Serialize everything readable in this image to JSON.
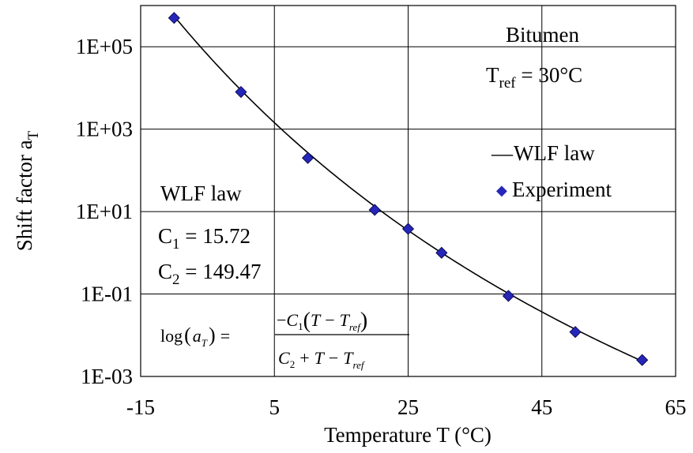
{
  "chart_data": {
    "type": "scatter",
    "title": "",
    "xlabel": "Temperature T (°C)",
    "ylabel_main": "Shift factor a",
    "ylabel_sub": "T",
    "xlim": [
      -15,
      65
    ],
    "ylim_log10": [
      -3,
      6
    ],
    "y_scale": "log",
    "grid": true,
    "x_ticks": [
      -15,
      5,
      25,
      45,
      65
    ],
    "x_tick_labels": [
      "-15",
      "5",
      "25",
      "45",
      "65"
    ],
    "y_ticks": [
      0.001,
      0.1,
      10.0,
      1000.0,
      100000.0
    ],
    "y_tick_labels": [
      "1E-03",
      "1E-01",
      "1E+01",
      "1E+03",
      "1E+05"
    ],
    "series": [
      {
        "name": "Experiment",
        "kind": "points",
        "marker": "diamond",
        "color": "#2626b8",
        "x": [
          -10,
          0,
          10,
          20,
          25,
          30,
          40,
          50,
          60
        ],
        "y": [
          500000,
          8000,
          200,
          11,
          3.8,
          1,
          0.09,
          0.012,
          0.0025
        ]
      },
      {
        "name": "WLF law",
        "kind": "line",
        "color": "#000000",
        "C1": 15.72,
        "C2": 149.47,
        "Tref": 30
      }
    ],
    "legend": {
      "placement": "right",
      "items": [
        {
          "label": "WLF law",
          "symbol": "—"
        },
        {
          "label": "Experiment",
          "symbol": "◆"
        }
      ]
    },
    "annotations": {
      "material": "Bitumen",
      "tref_label_main": "T",
      "tref_label_sub": "ref",
      "tref_value": " = 30°C",
      "wlf_title": "WLF law",
      "c1_main": "C",
      "c1_sub": "1",
      "c1_value": " = 15.72",
      "c2_main": "C",
      "c2_sub": "2",
      "c2_value": " = 149.47",
      "formula": {
        "log_label": "log",
        "a_main": "a",
        "a_sub": "T",
        "equals": "=",
        "numerator_minus": "−",
        "numerator_c": "C",
        "numerator_c_sub": "1",
        "numerator_t": "T",
        "numerator_minus2": "−",
        "numerator_tref": "T",
        "numerator_tref_sub": "ref",
        "denominator_c": "C",
        "denominator_c_sub": "2",
        "denominator_plus": "+",
        "denominator_t": "T",
        "denominator_minus": "−",
        "denominator_tref": "T",
        "denominator_tref_sub": "ref"
      }
    }
  }
}
